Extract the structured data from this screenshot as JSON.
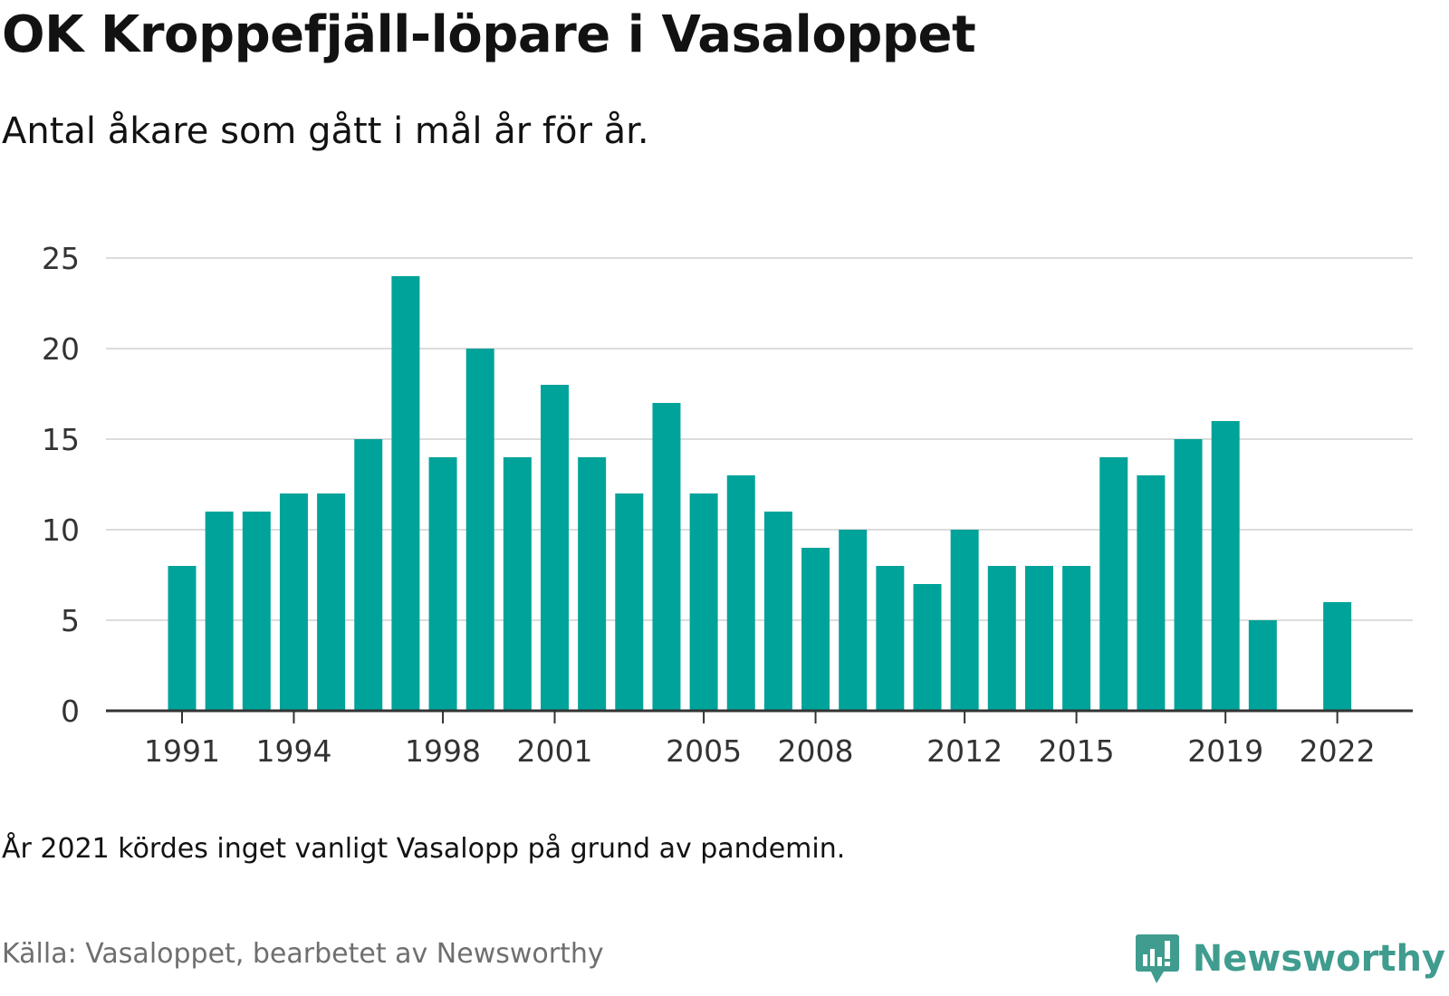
{
  "header": {
    "title": "OK Kroppefjäll-löpare i Vasaloppet",
    "subtitle": "Antal åkare som gått i mål år för år."
  },
  "footer": {
    "note": "År 2021 kördes inget vanligt Vasalopp på grund av pandemin.",
    "source": "Källa: Vasaloppet, bearbetet av Newsworthy",
    "brand": "Newsworthy",
    "brand_icon": "newsworthy-logo-icon"
  },
  "colors": {
    "bar": "#00a39a",
    "grid": "#dcdcdc",
    "axis": "#333333",
    "brand": "#3f9c8e",
    "source_text": "#6f6f6f"
  },
  "chart_data": {
    "type": "bar",
    "title": "OK Kroppefjäll-löpare i Vasaloppet",
    "subtitle": "Antal åkare som gått i mål år för år.",
    "xlabel": "",
    "ylabel": "",
    "ylim": [
      0,
      25
    ],
    "yticks": [
      0,
      5,
      10,
      15,
      20,
      25
    ],
    "xtick_labels": [
      "1991",
      "1994",
      "1998",
      "2001",
      "2005",
      "2008",
      "2012",
      "2015",
      "2019",
      "2022"
    ],
    "grid": true,
    "legend": "none",
    "categories": [
      "1991",
      "1992",
      "1993",
      "1994",
      "1995",
      "1996",
      "1997",
      "1998",
      "1999",
      "2000",
      "2001",
      "2002",
      "2003",
      "2004",
      "2005",
      "2006",
      "2007",
      "2008",
      "2009",
      "2010",
      "2011",
      "2012",
      "2013",
      "2014",
      "2015",
      "2016",
      "2017",
      "2018",
      "2019",
      "2020",
      "2021",
      "2022"
    ],
    "values": [
      8,
      11,
      11,
      12,
      12,
      15,
      24,
      14,
      20,
      14,
      18,
      14,
      12,
      17,
      12,
      13,
      11,
      9,
      10,
      8,
      7,
      10,
      8,
      8,
      8,
      14,
      13,
      15,
      16,
      5,
      null,
      6
    ]
  }
}
